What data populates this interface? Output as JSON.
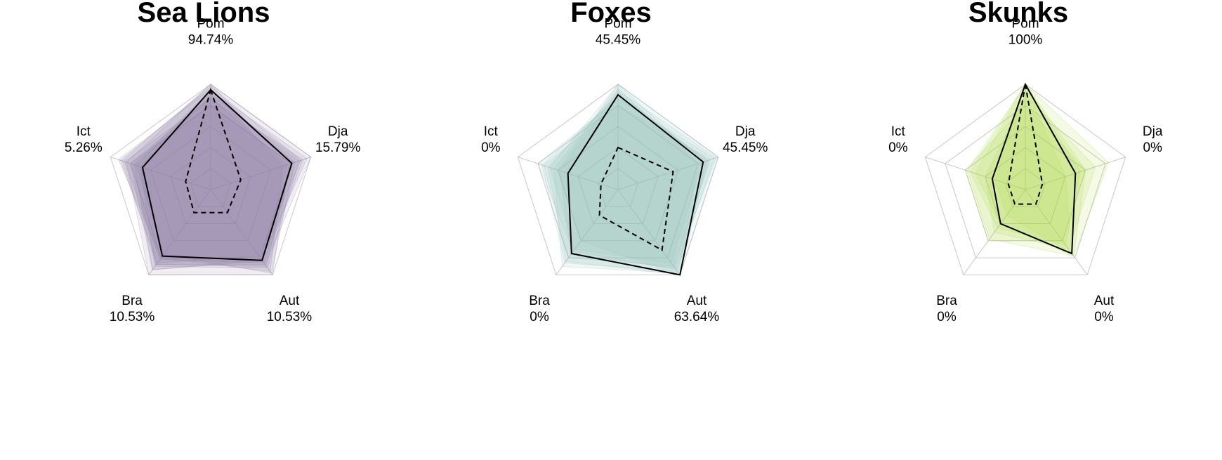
{
  "chart_data": [
    {
      "type": "radar",
      "title": "Sea Lions",
      "axes": [
        "Pom",
        "Dja",
        "Aut",
        "Bra",
        "Ict"
      ],
      "axis_values": [
        "94.74%",
        "15.79%",
        "10.53%",
        "10.53%",
        "5.26%"
      ],
      "rmax": 100,
      "grid_levels": 5,
      "color": "#8c7aa0",
      "summary_lines": [
        {
          "style": "solid",
          "values": [
            94.74,
            81,
            83,
            78,
            68
          ]
        },
        {
          "style": "dashed",
          "values": [
            94.74,
            30,
            27,
            27,
            25
          ]
        }
      ],
      "background_polygons": [
        [
          100,
          100,
          88,
          88,
          88
        ],
        [
          94,
          96,
          82,
          94,
          76
        ],
        [
          96,
          72,
          96,
          80,
          92
        ],
        [
          90,
          88,
          92,
          90,
          70
        ],
        [
          100,
          78,
          100,
          100,
          84
        ],
        [
          86,
          92,
          86,
          82,
          86
        ],
        [
          92,
          84,
          98,
          76,
          74
        ],
        [
          80,
          80,
          90,
          88,
          78
        ],
        [
          98,
          90,
          78,
          86,
          90
        ],
        [
          88,
          76,
          84,
          94,
          80
        ]
      ]
    },
    {
      "type": "radar",
      "title": "Foxes",
      "axes": [
        "Pom",
        "Dja",
        "Aut",
        "Bra",
        "Ict"
      ],
      "axis_values": [
        "45.45%",
        "45.45%",
        "63.64%",
        "0%",
        "0%"
      ],
      "rmax": 100,
      "grid_levels": 5,
      "color": "#8fc3b8",
      "summary_lines": [
        {
          "style": "solid",
          "values": [
            90,
            85,
            100,
            75,
            50
          ]
        },
        {
          "style": "dashed",
          "values": [
            40,
            55,
            71,
            30,
            17
          ]
        }
      ],
      "background_polygons": [
        [
          100,
          100,
          100,
          60,
          60
        ],
        [
          92,
          88,
          100,
          84,
          70
        ],
        [
          86,
          96,
          94,
          72,
          80
        ],
        [
          96,
          80,
          98,
          90,
          64
        ],
        [
          80,
          92,
          90,
          80,
          74
        ],
        [
          100,
          84,
          86,
          70,
          68
        ],
        [
          88,
          90,
          96,
          86,
          76
        ],
        [
          94,
          98,
          92,
          76,
          58
        ]
      ]
    },
    {
      "type": "radar",
      "title": "Skunks",
      "axes": [
        "Pom",
        "Dja",
        "Aut",
        "Bra",
        "Ict"
      ],
      "axis_values": [
        "100%",
        "0%",
        "0%",
        "0%",
        "0%"
      ],
      "rmax": 100,
      "grid_levels": 5,
      "color": "#a8d840",
      "summary_lines": [
        {
          "style": "solid",
          "values": [
            100,
            50,
            75,
            40,
            33
          ]
        },
        {
          "style": "dashed",
          "values": [
            100,
            17,
            17,
            17,
            17
          ]
        }
      ],
      "background_polygons": [
        [
          100,
          83,
          78,
          40,
          50
        ],
        [
          100,
          60,
          78,
          58,
          58
        ],
        [
          80,
          60,
          60,
          60,
          60
        ],
        [
          100,
          40,
          75,
          30,
          30
        ],
        [
          90,
          70,
          70,
          50,
          40
        ],
        [
          100,
          55,
          65,
          45,
          55
        ]
      ]
    }
  ]
}
